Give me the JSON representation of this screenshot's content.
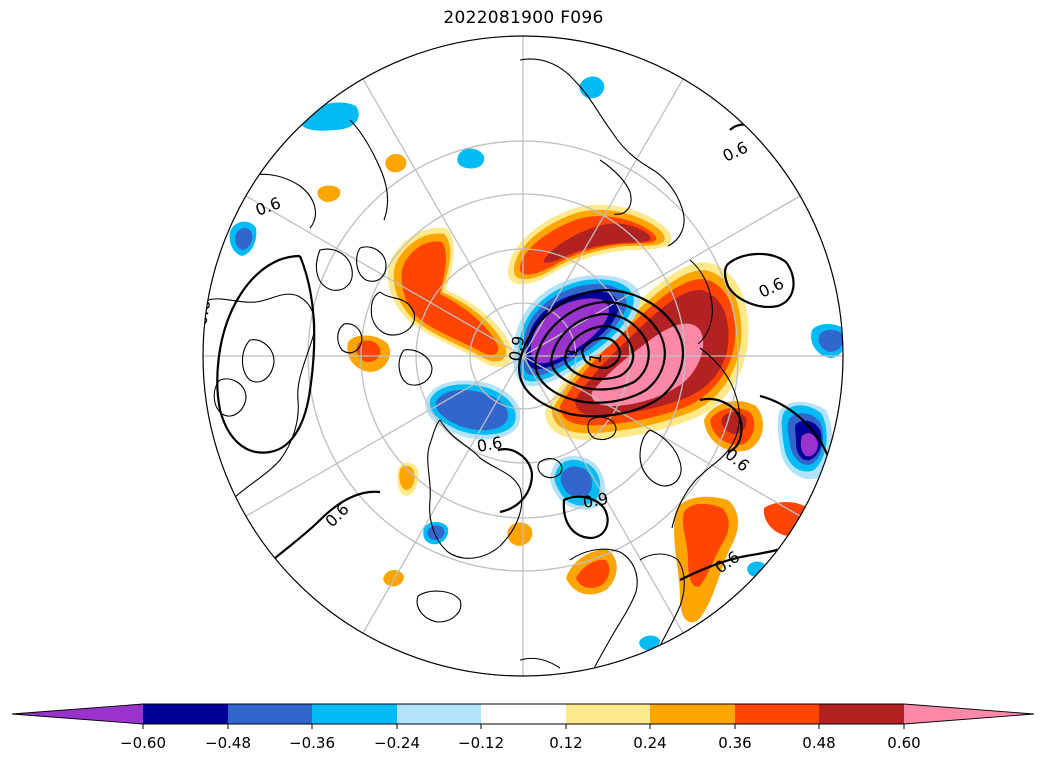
{
  "title": "2022081900 F096",
  "projection": "north-polar-stereographic",
  "graticule": {
    "lat_circles": [
      30,
      45,
      60,
      75
    ],
    "meridian_step_deg": 30,
    "color": "#bfbfbf"
  },
  "contours": {
    "labels": [
      "0.6",
      "0.6",
      "0.6",
      "0.6",
      "0.6",
      "0.6",
      "0.6",
      "0.6",
      "0.9",
      "0.9",
      "1",
      "1"
    ]
  },
  "colorbar": {
    "extend": "both",
    "ticks": [
      "−0.60",
      "−0.48",
      "−0.36",
      "−0.24",
      "−0.12",
      "0.12",
      "0.24",
      "0.36",
      "0.48",
      "0.60"
    ],
    "levels": [
      -0.6,
      -0.48,
      -0.36,
      -0.24,
      -0.12,
      0.12,
      0.24,
      0.36,
      0.48,
      0.6
    ],
    "colors": [
      "#9933cc",
      "#000099",
      "#3366cc",
      "#00bbf5",
      "#b3e3fa",
      "#ffffff",
      "#ffe98a",
      "#ffa500",
      "#ff4500",
      "#b22222",
      "#ff88a8"
    ]
  }
}
